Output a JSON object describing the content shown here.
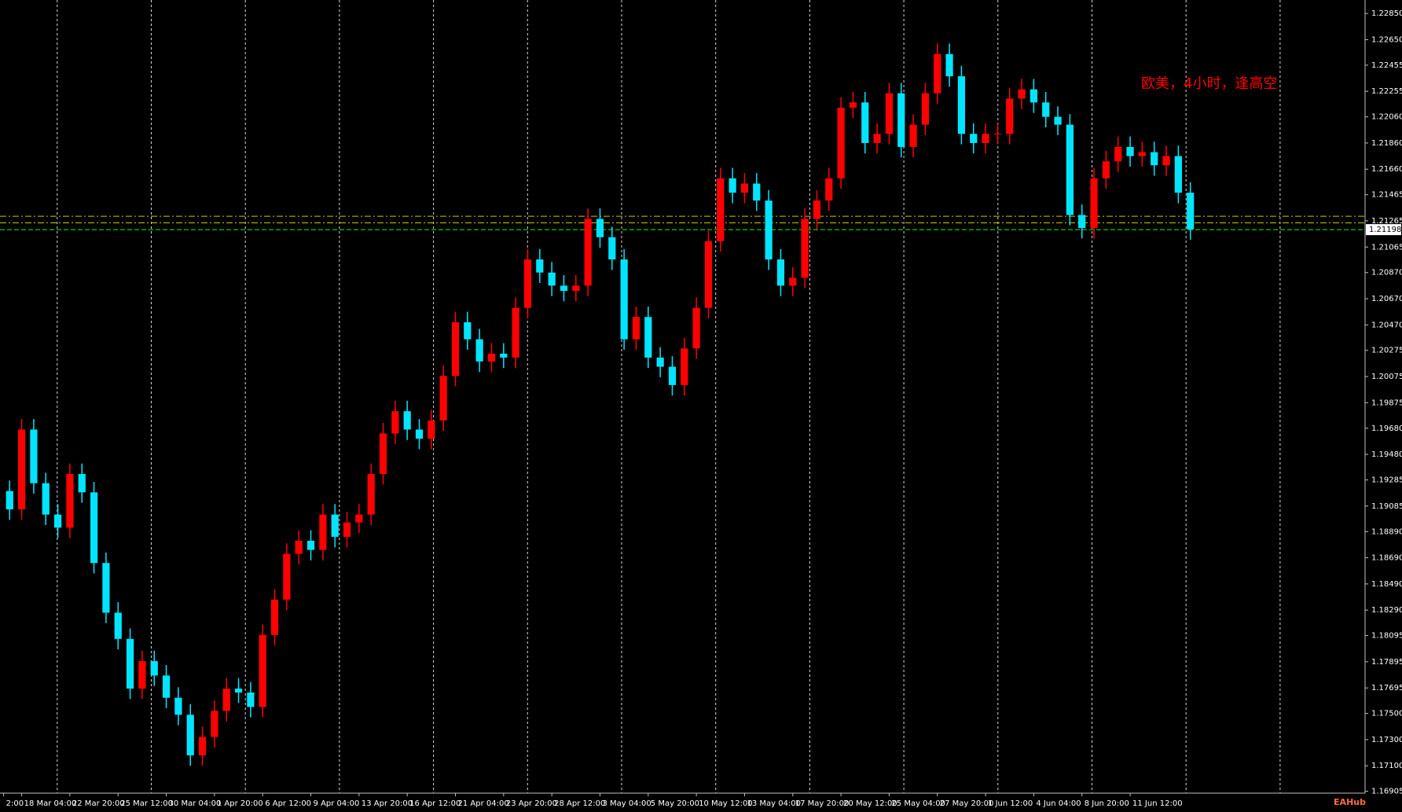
{
  "chart_data": {
    "type": "candlestick",
    "annotation": "欧美，4小时，逢高空",
    "watermark": "EAHub",
    "up_color": "#ff0000",
    "down_color": "#00e5ff",
    "ylim": [
      1.16891,
      1.22953
    ],
    "xlim": [
      -0.8,
      112.5
    ],
    "yticks": [
      {
        "value": 1.2285,
        "label": "1.22850"
      },
      {
        "value": 1.2265,
        "label": "1.22650"
      },
      {
        "value": 1.22455,
        "label": "1.22455"
      },
      {
        "value": 1.22255,
        "label": "1.22255"
      },
      {
        "value": 1.2206,
        "label": "1.22060"
      },
      {
        "value": 1.2186,
        "label": "1.21860"
      },
      {
        "value": 1.2166,
        "label": "1.21660"
      },
      {
        "value": 1.21465,
        "label": "1.21465"
      },
      {
        "value": 1.21265,
        "label": "1.21265"
      },
      {
        "value": 1.21065,
        "label": "1.21065"
      },
      {
        "value": 1.2087,
        "label": "1.20870"
      },
      {
        "value": 1.2067,
        "label": "1.20670"
      },
      {
        "value": 1.2047,
        "label": "1.20470"
      },
      {
        "value": 1.20275,
        "label": "1.20275"
      },
      {
        "value": 1.20075,
        "label": "1.20075"
      },
      {
        "value": 1.19875,
        "label": "1.19875"
      },
      {
        "value": 1.1968,
        "label": "1.19680"
      },
      {
        "value": 1.1948,
        "label": "1.19480"
      },
      {
        "value": 1.19285,
        "label": "1.19285"
      },
      {
        "value": 1.19085,
        "label": "1.19085"
      },
      {
        "value": 1.1889,
        "label": "1.18890"
      },
      {
        "value": 1.1869,
        "label": "1.18690"
      },
      {
        "value": 1.1849,
        "label": "1.18490"
      },
      {
        "value": 1.1829,
        "label": "1.18290"
      },
      {
        "value": 1.18095,
        "label": "1.18095"
      },
      {
        "value": 1.17895,
        "label": "1.17895"
      },
      {
        "value": 1.17695,
        "label": "1.17695"
      },
      {
        "value": 1.175,
        "label": "1.17500"
      },
      {
        "value": 1.173,
        "label": "1.17300"
      },
      {
        "value": 1.171,
        "label": "1.17100"
      },
      {
        "value": 1.16905,
        "label": "1.16905"
      }
    ],
    "xticks": [
      {
        "value": -0.5,
        "label": "2:00"
      },
      {
        "value": 1,
        "label": "18 Mar 04:00"
      },
      {
        "value": 5,
        "label": "22 Mar 20:00"
      },
      {
        "value": 9,
        "label": "25 Mar 12:00"
      },
      {
        "value": 13,
        "label": "30 Mar 04:00"
      },
      {
        "value": 17,
        "label": "1 Apr 20:00"
      },
      {
        "value": 21,
        "label": "6 Apr 12:00"
      },
      {
        "value": 25,
        "label": "9 Apr 04:00"
      },
      {
        "value": 29,
        "label": "13 Apr 20:00"
      },
      {
        "value": 33,
        "label": "16 Apr 12:00"
      },
      {
        "value": 37,
        "label": "21 Apr 04:00"
      },
      {
        "value": 41,
        "label": "23 Apr 20:00"
      },
      {
        "value": 45,
        "label": "28 Apr 12:00"
      },
      {
        "value": 49,
        "label": "3 May 04:00"
      },
      {
        "value": 53,
        "label": "5 May 20:00"
      },
      {
        "value": 57,
        "label": "10 May 12:00"
      },
      {
        "value": 61,
        "label": "13 May 04:00"
      },
      {
        "value": 65,
        "label": "17 May 20:00"
      },
      {
        "value": 69,
        "label": "20 May 12:00"
      },
      {
        "value": 73,
        "label": "25 May 04:00"
      },
      {
        "value": 77,
        "label": "27 May 20:00"
      },
      {
        "value": 81,
        "label": "1 Jun 12:00"
      },
      {
        "value": 85,
        "label": "4 Jun 04:00"
      },
      {
        "value": 89,
        "label": "8 Jun 20:00"
      },
      {
        "value": 93,
        "label": "11 Jun 12:00"
      }
    ],
    "price_lines": [
      {
        "value": 1.213,
        "color": "#c8c800"
      },
      {
        "value": 1.2125,
        "color": "#c8c800"
      }
    ],
    "current_price": 1.21198,
    "current_price_color": "#00ff00",
    "open": [
      1.192,
      1.1906,
      1.1967,
      1.1926,
      1.1902,
      1.1892,
      1.1933,
      1.1919,
      1.1865,
      1.1827,
      1.1807,
      1.1769,
      1.179,
      1.1779,
      1.1762,
      1.1749,
      1.1718,
      1.1732,
      1.1752,
      1.1769,
      1.1766,
      1.1755,
      1.181,
      1.1837,
      1.1872,
      1.1882,
      1.1875,
      1.1902,
      1.1885,
      1.1896,
      1.1902,
      1.1933,
      1.1964,
      1.1981,
      1.1967,
      1.196,
      1.1974,
      1.2008,
      1.2049,
      1.2036,
      1.2019,
      1.2025,
      1.2022,
      1.206,
      1.2097,
      1.2087,
      1.2077,
      1.2073,
      1.2077,
      1.2128,
      1.2114,
      1.2097,
      1.2036,
      1.2053,
      1.2022,
      1.2015,
      1.2001,
      1.2029,
      1.206,
      1.2111,
      1.2159,
      1.2148,
      1.2155,
      1.2142,
      1.2097,
      1.2077,
      1.2083,
      1.2128,
      1.2142,
      1.2159,
      1.2213,
      1.2217,
      1.2186,
      1.2193,
      1.2224,
      1.2183,
      1.22,
      1.2224,
      1.2254,
      1.2237,
      1.2193,
      1.2186,
      1.2193,
      1.2193,
      1.222,
      1.2227,
      1.2217,
      1.2206,
      1.22,
      1.2131,
      1.2121,
      1.2159,
      1.2172,
      1.2183,
      1.2176,
      1.2179,
      1.2169,
      1.2176,
      1.2148
    ],
    "close": [
      1.1906,
      1.1967,
      1.1926,
      1.1902,
      1.1892,
      1.1933,
      1.1919,
      1.1865,
      1.1827,
      1.1807,
      1.1769,
      1.179,
      1.1779,
      1.1762,
      1.1749,
      1.1718,
      1.1732,
      1.1752,
      1.1769,
      1.1766,
      1.1755,
      1.181,
      1.1837,
      1.1872,
      1.1882,
      1.1875,
      1.1902,
      1.1885,
      1.1896,
      1.1902,
      1.1933,
      1.1964,
      1.1981,
      1.1967,
      1.196,
      1.1974,
      1.2008,
      1.2049,
      1.2036,
      1.2019,
      1.2025,
      1.2022,
      1.206,
      1.2097,
      1.2087,
      1.2077,
      1.2073,
      1.2077,
      1.2128,
      1.2114,
      1.2097,
      1.2036,
      1.2053,
      1.2022,
      1.2015,
      1.2001,
      1.2029,
      1.206,
      1.2111,
      1.2159,
      1.2148,
      1.2155,
      1.2142,
      1.2097,
      1.2077,
      1.2083,
      1.2128,
      1.2142,
      1.2159,
      1.2213,
      1.2217,
      1.2186,
      1.2193,
      1.2224,
      1.2183,
      1.22,
      1.2224,
      1.2254,
      1.2237,
      1.2193,
      1.2186,
      1.2193,
      1.2193,
      1.222,
      1.2227,
      1.2217,
      1.2206,
      1.22,
      1.2131,
      1.2121,
      1.2159,
      1.2172,
      1.2183,
      1.2176,
      1.2179,
      1.2169,
      1.2176,
      1.2148,
      1.212
    ],
    "high": [
      1.1928,
      1.1975,
      1.1975,
      1.1934,
      1.191,
      1.1941,
      1.1941,
      1.1927,
      1.1873,
      1.1835,
      1.1815,
      1.1798,
      1.1798,
      1.1787,
      1.177,
      1.1757,
      1.174,
      1.176,
      1.1777,
      1.1777,
      1.1774,
      1.1818,
      1.1845,
      1.188,
      1.189,
      1.189,
      1.191,
      1.191,
      1.1904,
      1.191,
      1.1941,
      1.1972,
      1.1989,
      1.1989,
      1.1975,
      1.1982,
      1.2016,
      1.2057,
      1.2057,
      1.2044,
      1.2033,
      1.2033,
      1.2068,
      1.2105,
      1.2105,
      1.2095,
      1.2085,
      1.2085,
      1.2136,
      1.2136,
      1.2122,
      1.2105,
      1.2061,
      1.2061,
      1.203,
      1.2023,
      1.2037,
      1.2068,
      1.2119,
      1.2167,
      1.2167,
      1.2163,
      1.2163,
      1.215,
      1.2105,
      1.2091,
      1.2136,
      1.215,
      1.2167,
      1.2221,
      1.2225,
      1.2225,
      1.2201,
      1.2232,
      1.2232,
      1.2208,
      1.2232,
      1.2262,
      1.2262,
      1.2245,
      1.2201,
      1.2201,
      1.2201,
      1.2228,
      1.2235,
      1.2235,
      1.2225,
      1.2214,
      1.2208,
      1.2139,
      1.2167,
      1.218,
      1.2191,
      1.2191,
      1.2187,
      1.2187,
      1.2184,
      1.2184,
      1.2156
    ],
    "low": [
      1.1898,
      1.1898,
      1.1918,
      1.1894,
      1.1884,
      1.1884,
      1.1911,
      1.1857,
      1.1819,
      1.1799,
      1.1761,
      1.1761,
      1.1771,
      1.1754,
      1.1741,
      1.171,
      1.171,
      1.1724,
      1.1744,
      1.1758,
      1.1747,
      1.1747,
      1.1802,
      1.1829,
      1.1864,
      1.1867,
      1.1867,
      1.1877,
      1.1877,
      1.1888,
      1.1894,
      1.1925,
      1.1956,
      1.1959,
      1.1952,
      1.1952,
      1.1966,
      1.2,
      1.2028,
      1.2011,
      1.2011,
      1.2014,
      1.2014,
      1.2052,
      1.2079,
      1.2069,
      1.2065,
      1.2065,
      1.2069,
      1.2106,
      1.2089,
      1.2028,
      1.2028,
      1.2014,
      1.2007,
      1.1993,
      1.1993,
      1.2021,
      1.2052,
      1.2103,
      1.214,
      1.214,
      1.2134,
      1.2089,
      1.2069,
      1.2069,
      1.2075,
      1.212,
      1.2134,
      1.2151,
      1.2205,
      1.2178,
      1.2178,
      1.2185,
      1.2175,
      1.2175,
      1.2192,
      1.2216,
      1.2229,
      1.2185,
      1.2178,
      1.2178,
      1.2185,
      1.2185,
      1.2212,
      1.2209,
      1.2198,
      1.2192,
      1.2123,
      1.2113,
      1.2113,
      1.2151,
      1.2164,
      1.2168,
      1.2168,
      1.2161,
      1.2161,
      1.214,
      1.2112
    ]
  }
}
